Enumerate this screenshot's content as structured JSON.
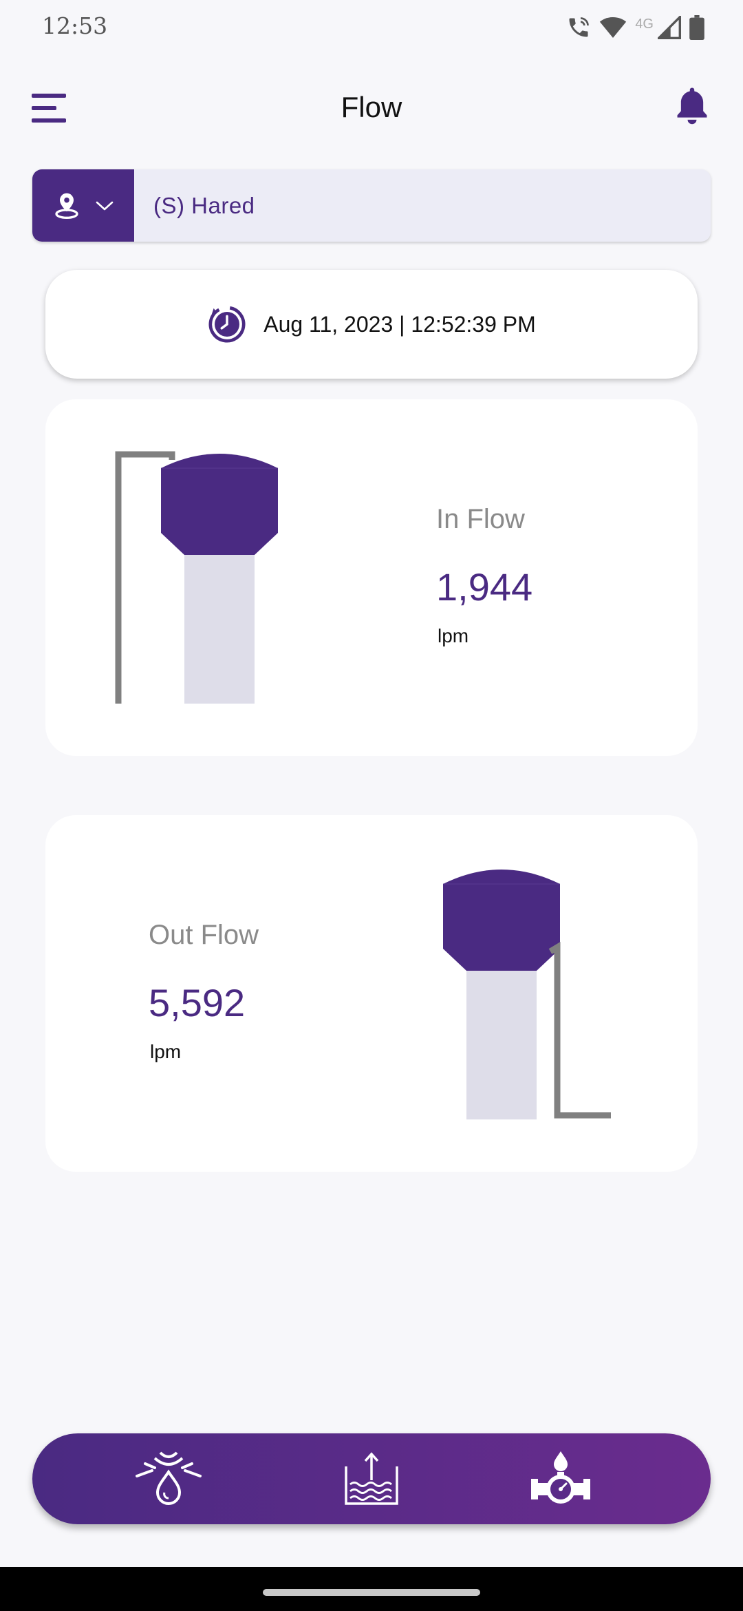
{
  "status_bar": {
    "time": "12:53",
    "network": "4G",
    "icons": [
      "wifi-calling-icon",
      "wifi-icon",
      "cellular-signal-icon",
      "battery-icon"
    ]
  },
  "header": {
    "title": "Flow",
    "menu_icon": "menu-icon",
    "notification_icon": "bell-icon"
  },
  "location": {
    "icon": "location-pin-icon",
    "dropdown_icon": "chevron-down-icon",
    "selected": "(S) Hared"
  },
  "timestamp": {
    "icon": "clock-refresh-icon",
    "text": "Aug 11, 2023 | 12:52:39 PM"
  },
  "in_flow": {
    "label": "In Flow",
    "value": "1,944",
    "unit": "lpm"
  },
  "out_flow": {
    "label": "Out Flow",
    "value": "5,592",
    "unit": "lpm"
  },
  "bottom_nav": {
    "items": [
      {
        "icon": "water-drop-sensor-icon"
      },
      {
        "icon": "water-level-upload-icon"
      },
      {
        "icon": "flow-meter-icon"
      }
    ]
  },
  "colors": {
    "primary": "#4a2a82",
    "accent": "#6a2c8e",
    "tank_body": "#dedde9",
    "pipe": "#808080",
    "background": "#f7f7fa"
  }
}
